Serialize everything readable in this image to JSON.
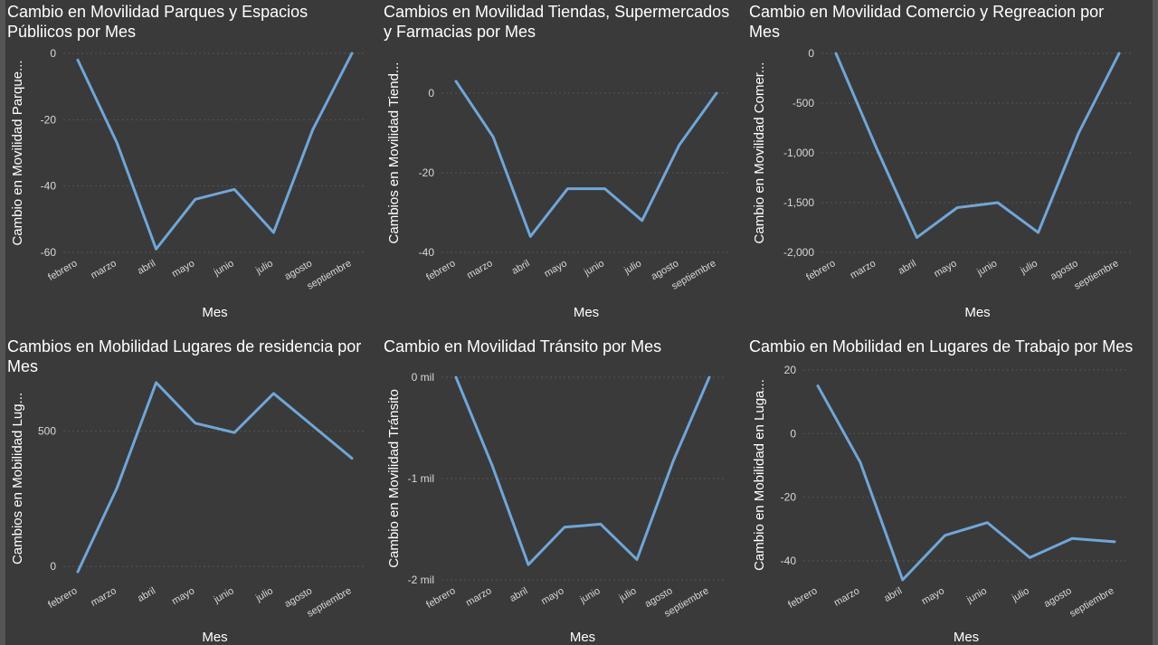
{
  "colors": {
    "background": "#3a3a3a",
    "line": "#70a6d9",
    "text": "#ffffff",
    "tick": "#d8d8d8"
  },
  "chart_data": [
    {
      "type": "line",
      "title": "Cambio en Movilidad Parques y Espacios Públiicos por Mes",
      "xlabel": "Mes",
      "ylabel": "Cambio en Movilidad Parque...",
      "categories": [
        "febrero",
        "marzo",
        "abril",
        "mayo",
        "junio",
        "julio",
        "agosto",
        "septiembre"
      ],
      "series": [
        {
          "values": [
            -2,
            -27,
            -59,
            -44,
            -41,
            -54,
            -23,
            0
          ]
        }
      ],
      "yticks": [
        0,
        -20,
        -40,
        -60
      ],
      "ytick_labels": [
        "0",
        "-20",
        "-40",
        "-60"
      ],
      "ylim": [
        -60,
        0
      ],
      "grid": true
    },
    {
      "type": "line",
      "title": "Cambios en Movilidad Tiendas, Supermercados y Farmacias por Mes",
      "xlabel": "Mes",
      "ylabel": "Cambios en Movilidad Tiend...",
      "categories": [
        "febrero",
        "marzo",
        "abril",
        "mayo",
        "junio",
        "julio",
        "agosto",
        "septiembre"
      ],
      "series": [
        {
          "values": [
            3,
            -11,
            -36,
            -24,
            -24,
            -32,
            -13,
            0
          ]
        }
      ],
      "yticks": [
        0,
        -20,
        -40
      ],
      "ytick_labels": [
        "0",
        "-20",
        "-40"
      ],
      "ylim": [
        -40,
        10
      ],
      "grid": true
    },
    {
      "type": "line",
      "title": "Cambio en Movilidad Comercio y Regreacion por Mes",
      "xlabel": "Mes",
      "ylabel": "Cambio en Movilidad Comer...",
      "categories": [
        "febrero",
        "marzo",
        "abril",
        "mayo",
        "junio",
        "julio",
        "agosto",
        "septiembre"
      ],
      "series": [
        {
          "values": [
            0,
            -950,
            -1850,
            -1550,
            -1500,
            -1800,
            -800,
            0
          ]
        }
      ],
      "yticks": [
        0,
        -500,
        -1000,
        -1500,
        -2000
      ],
      "ytick_labels": [
        "0",
        "-500",
        "-1,000",
        "-1,500",
        "-2,000"
      ],
      "ylim": [
        -2000,
        0
      ],
      "grid": true
    },
    {
      "type": "line",
      "title": "Cambios en Mobilidad Lugares de residencia por Mes",
      "xlabel": "Mes",
      "ylabel": "Cambios en Mobilidad Lug...",
      "categories": [
        "febrero",
        "marzo",
        "abril",
        "mayo",
        "junio",
        "julio",
        "agosto",
        "septiembre"
      ],
      "series": [
        {
          "values": [
            -20,
            290,
            680,
            530,
            495,
            640,
            520,
            400
          ]
        }
      ],
      "yticks": [
        0,
        500
      ],
      "ytick_labels": [
        "0",
        "500"
      ],
      "ylim": [
        -50,
        700
      ],
      "grid": true
    },
    {
      "type": "line",
      "title": "Cambio en Movilidad Tránsito por Mes",
      "xlabel": "Mes",
      "ylabel": "Cambio en Movilidad Tránsito",
      "categories": [
        "febrero",
        "marzo",
        "abril",
        "mayo",
        "junio",
        "julio",
        "agosto",
        "septiembre"
      ],
      "series": [
        {
          "values": [
            0,
            -870,
            -1850,
            -1480,
            -1450,
            -1800,
            -830,
            0
          ]
        }
      ],
      "yticks": [
        0,
        -1000,
        -2000
      ],
      "ytick_labels": [
        "0 mil",
        "-1 mil",
        "-2 mil"
      ],
      "ylim": [
        -2000,
        0
      ],
      "grid": true
    },
    {
      "type": "line",
      "title": "Cambio en Mobilidad en Lugares de Trabajo por Mes",
      "xlabel": "Mes",
      "ylabel": "Cambio en Mobilidad en Luga...",
      "categories": [
        "febrero",
        "marzo",
        "abril",
        "mayo",
        "junio",
        "julio",
        "agosto",
        "septiembre"
      ],
      "series": [
        {
          "values": [
            15,
            -9,
            -46,
            -32,
            -28,
            -39,
            -33,
            -34
          ]
        }
      ],
      "yticks": [
        20,
        0,
        -20,
        -40
      ],
      "ytick_labels": [
        "20",
        "0",
        "-20",
        "-40"
      ],
      "ylim": [
        -46,
        20
      ],
      "grid": true
    }
  ]
}
